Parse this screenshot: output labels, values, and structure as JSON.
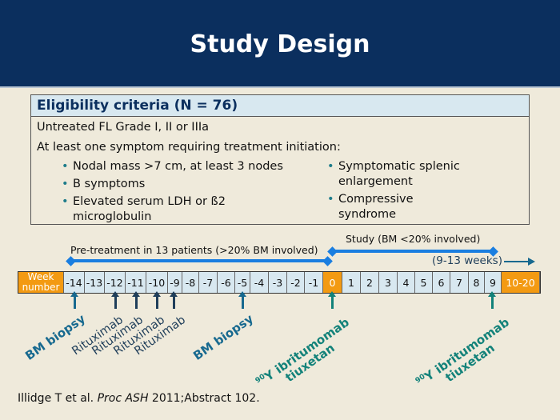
{
  "title": "Study Design",
  "eligibility": {
    "heading": "Eligibility criteria (N = 76)",
    "line1": "Untreated FL Grade I, II or IIIa",
    "line2": "At least one symptom requiring treatment initiation:",
    "bullets_left": [
      "Nodal mass >7 cm, at least 3 nodes",
      "B symptoms",
      "Elevated serum LDH or ß2 microglobulin"
    ],
    "bullets_right": [
      "Symptomatic splenic enlargement",
      "Compressive syndrome"
    ]
  },
  "timeline": {
    "pretreatment_label": "Pre-treatment in 13 patients (>20% BM involved)",
    "study_label": "Study (BM <20% involved)",
    "weeks_label": "(9-13 weeks)",
    "week_header": [
      "Week",
      "number"
    ],
    "cells": [
      "-14",
      "-13",
      "-12",
      "-11",
      "-10",
      "-9",
      "-8",
      "-7",
      "-6",
      "-5",
      "-4",
      "-3",
      "-2",
      "-1",
      "0",
      "1",
      "2",
      "3",
      "4",
      "5",
      "6",
      "7",
      "8",
      "9",
      "10-20"
    ],
    "events": {
      "bm_biopsy": "BM biopsy",
      "rituximab": "Rituximab",
      "ibritumomab_1": "Y ibritumomab",
      "ibritumomab_2": "tiuxetan",
      "isotope": "90"
    }
  },
  "citation": {
    "authors": "Illidge T et al. ",
    "journal": "Proc ASH",
    "rest": " 2011;Abstract 102."
  }
}
